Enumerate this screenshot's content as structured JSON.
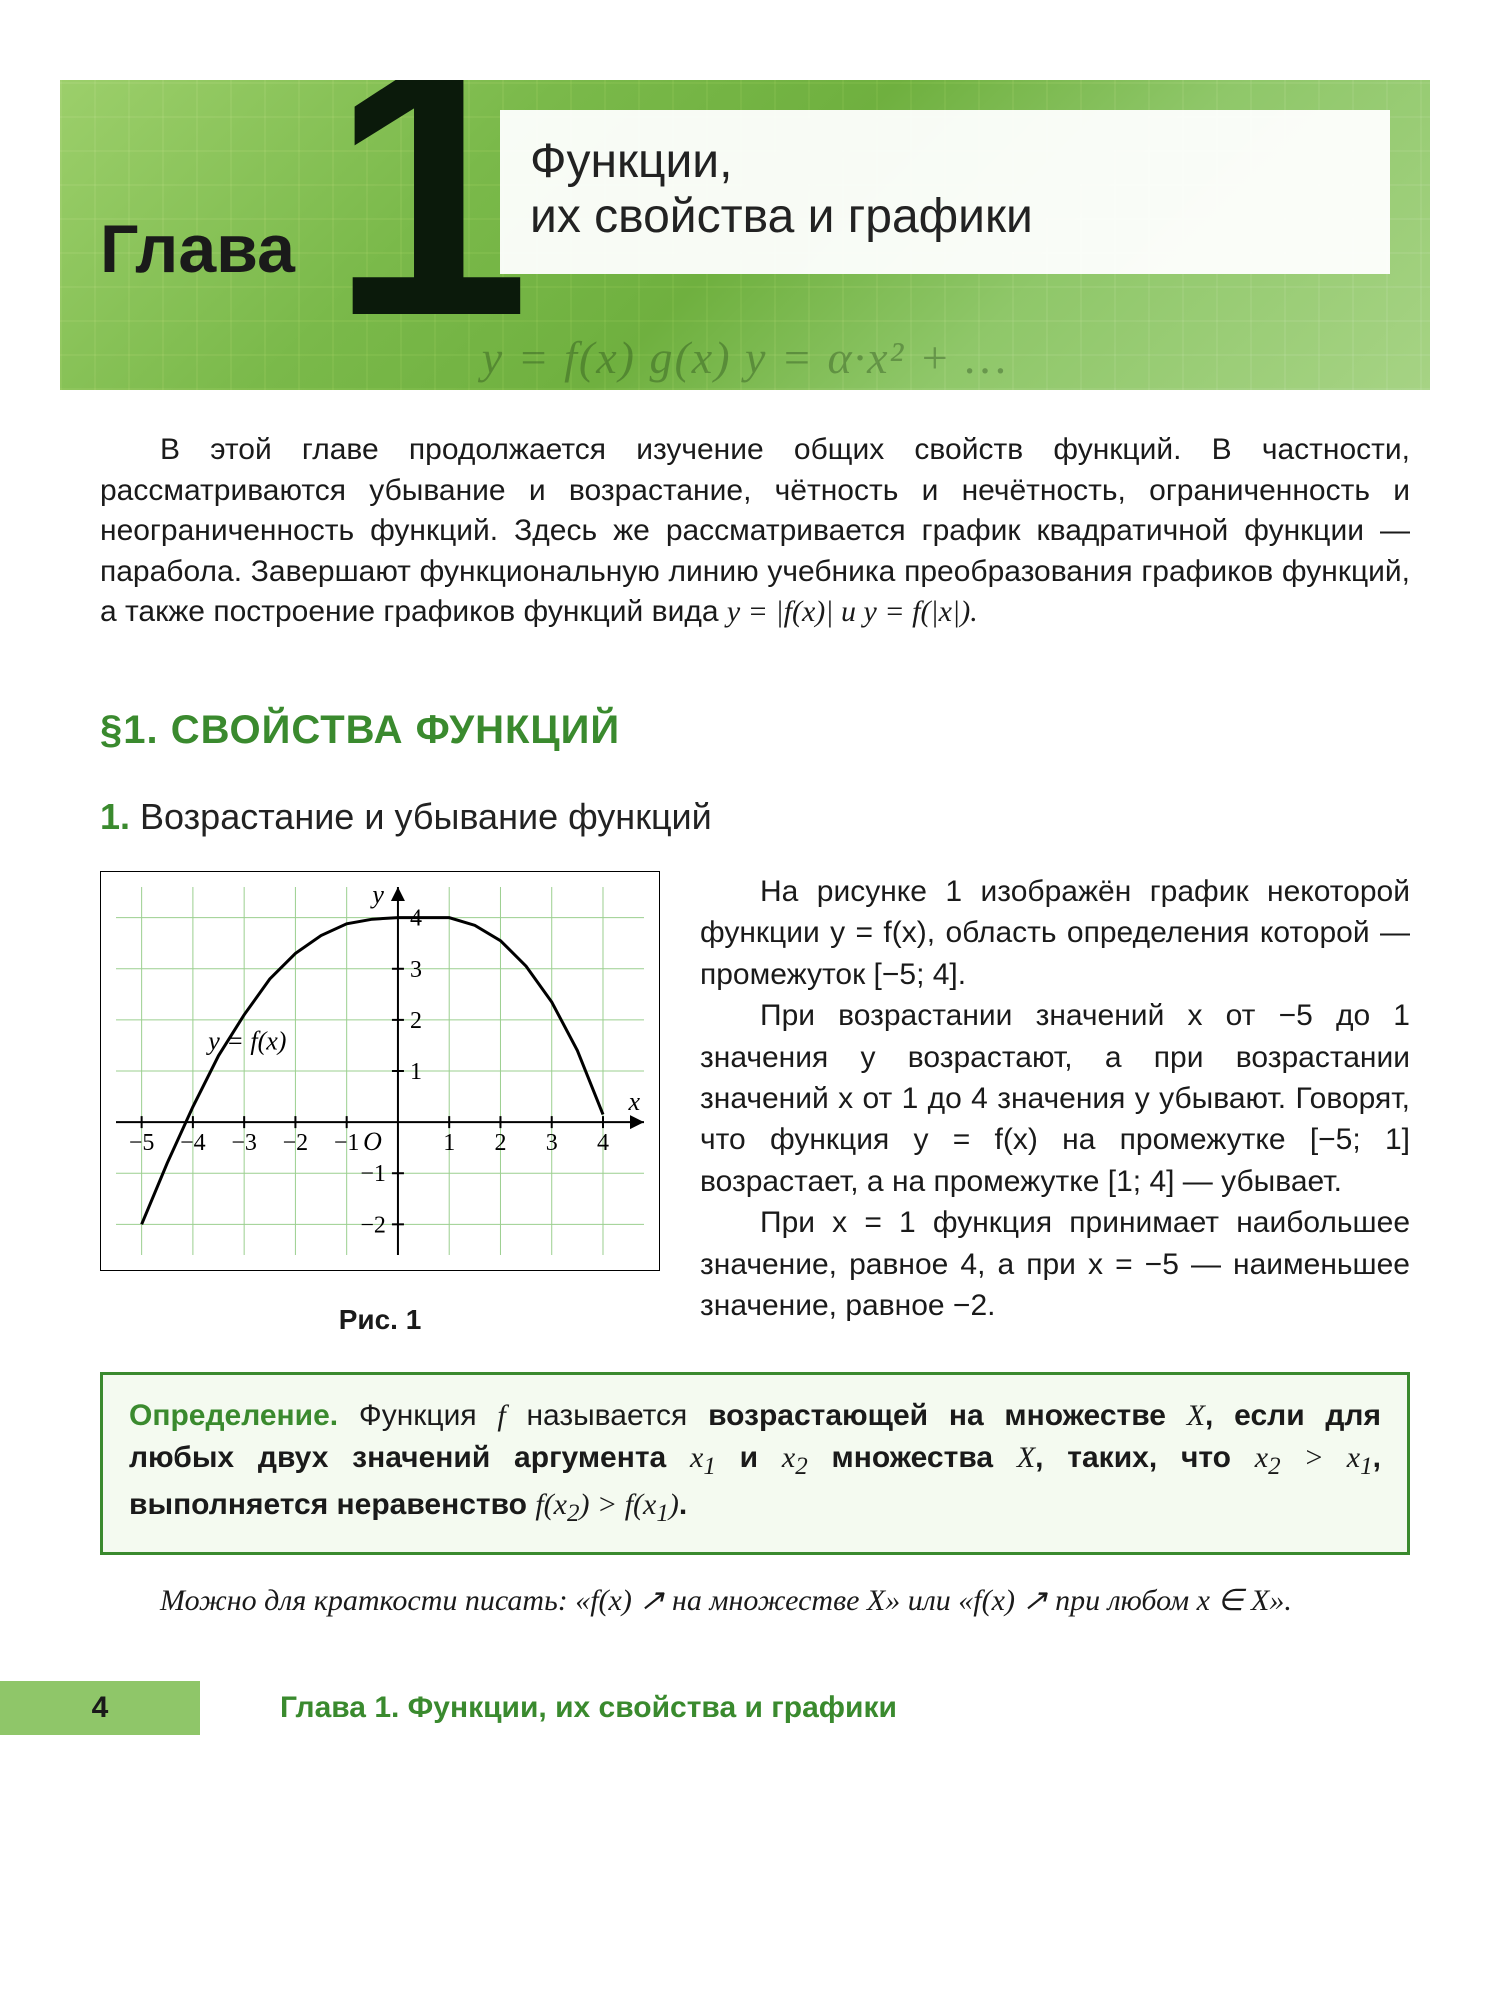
{
  "banner": {
    "chapter_word": "Глава",
    "chapter_number": "1",
    "title_line1": "Функции,",
    "title_line2": "их свойства и графики",
    "decor_formula": "y = f(x)    g(x)    y = α·x² + …",
    "bg_gradient": [
      "#9ccf6b",
      "#7ab94a",
      "#6fb03f",
      "#8fc769",
      "#a6d384"
    ]
  },
  "intro_text": "В этой главе продолжается изучение общих свойств функций. В частности, рассматриваются убывание и возрастание, чётность и нечётность, ограниченность и неограниченность функций. Здесь же рассматривается график квадратичной функции — парабола. Завершают функциональную линию учебника преобразования графиков функций, а также построение графиков функций вида ",
  "intro_formula": "y = |f(x)|  и  y = f(|x|).",
  "section_title": "§1. СВОЙСТВА ФУНКЦИЙ",
  "subsection_num": "1.",
  "subsection_title": " Возрастание и убывание функций",
  "para1": "На рисунке 1 изображён график некоторой функции y = f(x), область определения которой — промежуток [−5; 4].",
  "para2": "При возрастании значений x от −5 до 1 значения y возрастают, а при возрастании значений x от 1 до 4 значения y убывают. Говорят, что функция y = f(x) на промежутке [−5; 1] возрастает, а на промежутке [1; 4] — убывает.",
  "para3": "При x = 1 функция принимает наибольшее значение, равное 4, а при x = −5 — наименьшее значение, равное −2.",
  "figure": {
    "caption": "Рис. 1",
    "type": "line",
    "curve_label": "y = f(x)",
    "xlim": [
      -5.5,
      4.8
    ],
    "ylim": [
      -2.6,
      4.6
    ],
    "xtick": [
      -5,
      -4,
      -3,
      -2,
      -1,
      1,
      2,
      3,
      4
    ],
    "ytick": [
      -2,
      -1,
      1,
      2,
      3,
      4
    ],
    "grid_color": "#9bcf8f",
    "axis_color": "#000000",
    "curve_color": "#000000",
    "background_color": "#ffffff",
    "origin_label": "O",
    "x_axis_label": "x",
    "y_axis_label": "y",
    "curve_points": [
      [
        -5,
        -2
      ],
      [
        -4.5,
        -0.8
      ],
      [
        -4,
        0.3
      ],
      [
        -3.5,
        1.3
      ],
      [
        -3,
        2.1
      ],
      [
        -2.5,
        2.8
      ],
      [
        -2,
        3.3
      ],
      [
        -1.5,
        3.65
      ],
      [
        -1,
        3.88
      ],
      [
        -0.5,
        3.97
      ],
      [
        0,
        4.0
      ],
      [
        0.5,
        4.0
      ],
      [
        1,
        4.0
      ],
      [
        1.5,
        3.85
      ],
      [
        2,
        3.55
      ],
      [
        2.5,
        3.05
      ],
      [
        3,
        2.35
      ],
      [
        3.5,
        1.4
      ],
      [
        4,
        0.15
      ]
    ],
    "label_fontsize": 26,
    "tick_fontsize": 24,
    "curve_width": 3
  },
  "definition": {
    "word": "Определение.",
    "body_html": " Функция <span class='math'>f</span> называется <b>возрастающей на множестве</b> <span class='math'>X</span><b>,</b> <b>если для любых двух значений аргумента</b> <span class='math'>x<sub>1</sub></span> <b>и</b> <span class='math'>x<sub>2</sub></span> <b>множества</b> <span class='math'>X</span><b>, таких, что</b> <span class='math'>x<sub>2</sub> &gt; x<sub>1</sub></span><b>, выполняется неравенство</b> <span class='math'>f(x<sub>2</sub>) &gt; f(x<sub>1</sub>)</span><b>.</b>"
  },
  "tail_text": "Можно для краткости писать: «f(x) ↗ на множестве X» или «f(x) ↗ при любом x ∈ X».",
  "footer": {
    "page_number": "4",
    "running_title": "Глава 1. Функции, их свойства и графики"
  },
  "colors": {
    "accent_green": "#3a8a2e",
    "box_border": "#3a8a2e",
    "box_bg": "#f4faf0",
    "footer_tab": "#8fc669"
  }
}
